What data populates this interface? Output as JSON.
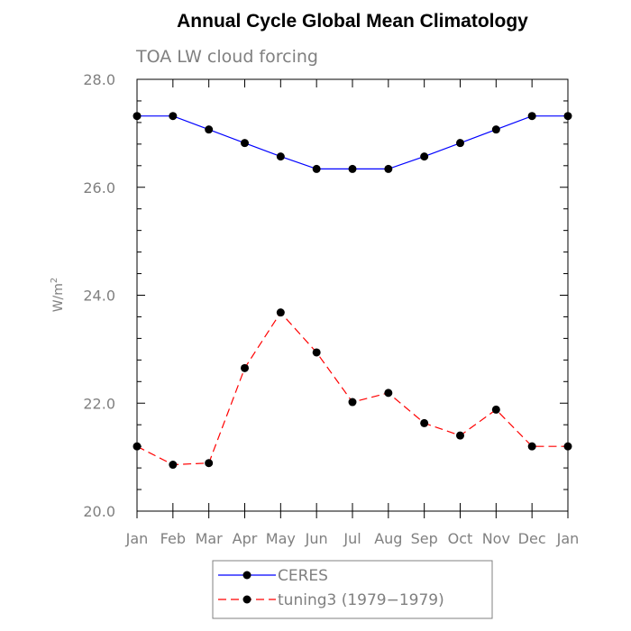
{
  "chart_data": {
    "type": "line",
    "title": "Annual Cycle Global Mean Climatology",
    "subtitle": "TOA LW cloud forcing",
    "ylabel": "W/m",
    "ylabel_superscript": "2",
    "xlabel": "",
    "categories": [
      "Jan",
      "Feb",
      "Mar",
      "Apr",
      "May",
      "Jun",
      "Jul",
      "Aug",
      "Sep",
      "Oct",
      "Nov",
      "Dec",
      "Jan"
    ],
    "ylim": [
      20.0,
      28.0
    ],
    "yticks": [
      "20.0",
      "22.0",
      "24.0",
      "26.0",
      "28.0"
    ],
    "grid": false,
    "legend_position": "bottom",
    "series": [
      {
        "name": "CERES",
        "color": "#0000ff",
        "dash": "solid",
        "marker": "filled-circle",
        "values": [
          27.32,
          27.32,
          27.07,
          26.82,
          26.57,
          26.34,
          26.34,
          26.34,
          26.57,
          26.82,
          27.07,
          27.32,
          27.32
        ]
      },
      {
        "name": "tuning3 (1979−1979)",
        "color": "#ff0000",
        "dash": "dashed",
        "marker": "filled-circle",
        "values": [
          21.2,
          20.86,
          20.89,
          22.65,
          23.68,
          22.94,
          22.02,
          22.19,
          21.63,
          21.4,
          21.88,
          21.2,
          21.2
        ]
      }
    ]
  }
}
